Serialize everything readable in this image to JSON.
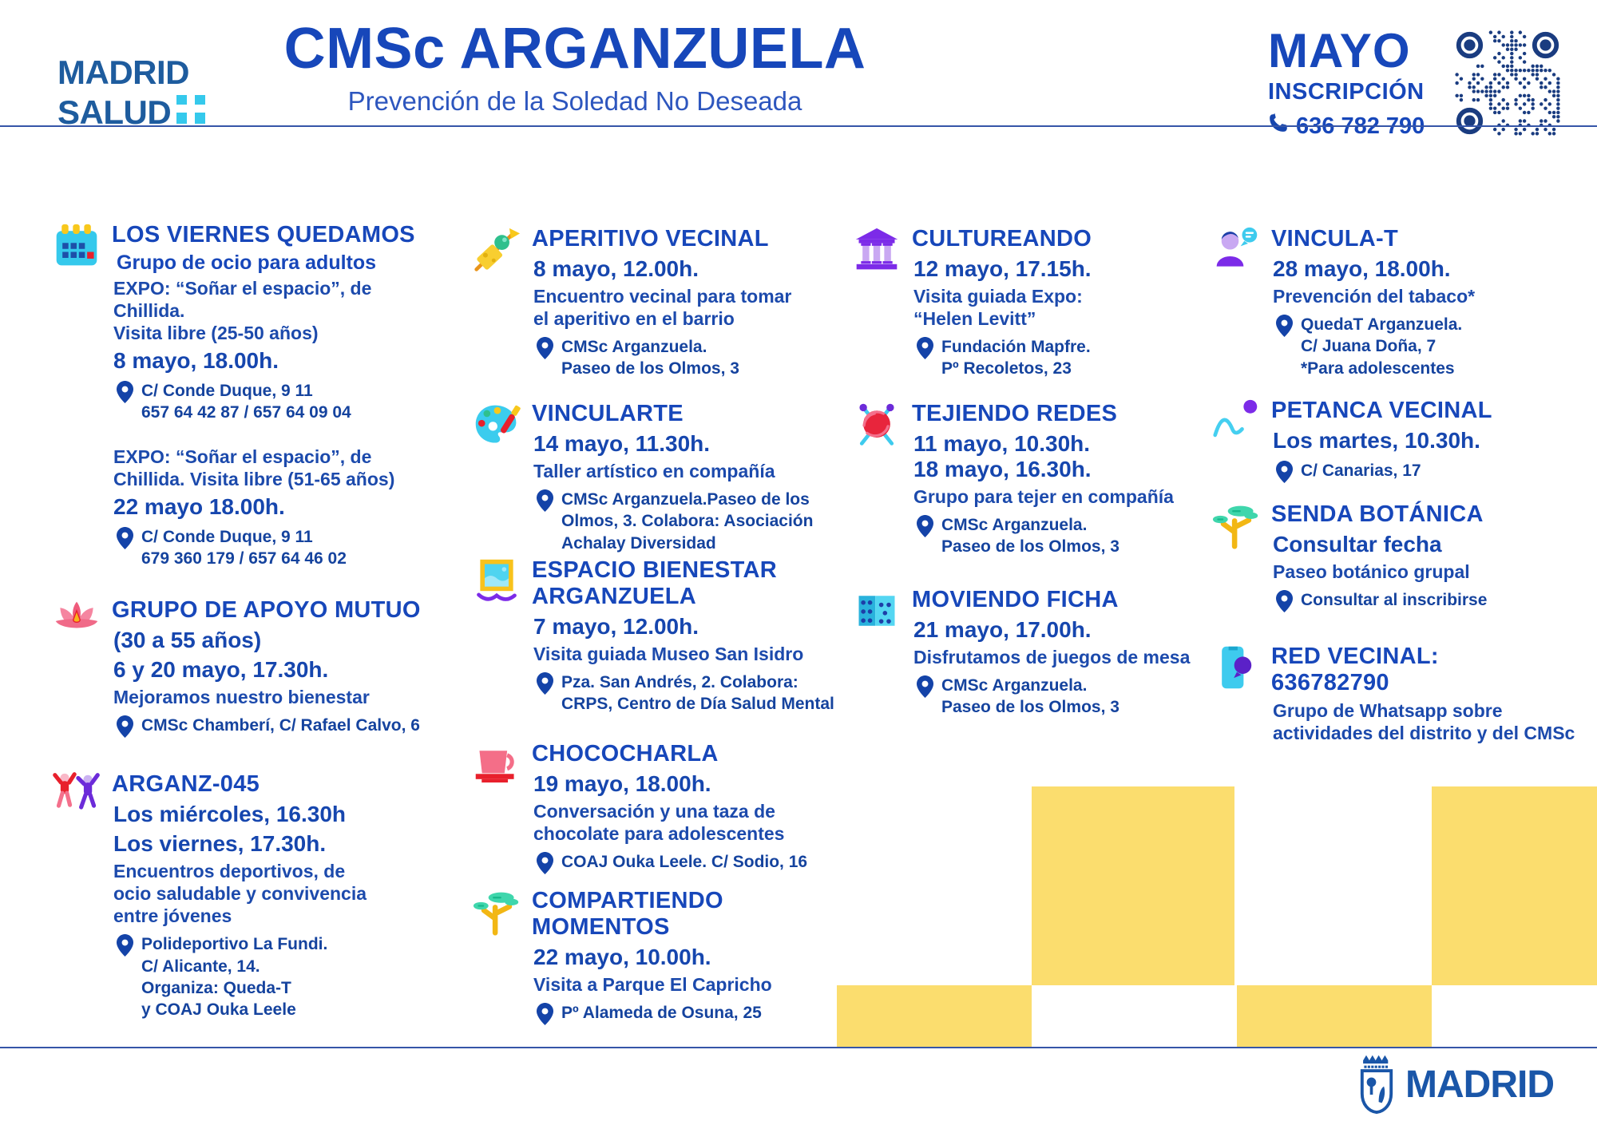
{
  "header": {
    "brand_line1": "MADRID",
    "brand_line2": "SALUD",
    "title": "CMSc ARGANZUELA",
    "subtitle": "Prevención de la Soledad No Deseada",
    "month": "MAYO",
    "inscription_label": "INSCRIPCIÓN",
    "phone": "636 782 790"
  },
  "columns": [
    {
      "events": [
        {
          "icon": "calendar-icon",
          "rows": [
            {
              "type": "title",
              "text": "LOS VIERNES QUEDAMOS"
            },
            {
              "type": "subtitle",
              "text": "Grupo de ocio para adultos"
            },
            {
              "type": "body",
              "text": "EXPO: “Soñar el espacio”, de Chillida.\nVisita libre (25-50 años)"
            },
            {
              "type": "date",
              "text": "8 mayo, 18.00h."
            },
            {
              "type": "location",
              "lines": [
                "C/ Conde Duque, 9 11",
                "657 64 42 87 / 657 64 09 04"
              ]
            },
            {
              "type": "gap"
            },
            {
              "type": "body",
              "text": "EXPO: “Soñar el espacio”, de\nChillida. Visita libre (51-65 años)"
            },
            {
              "type": "date",
              "text": "22 mayo 18.00h."
            },
            {
              "type": "location",
              "lines": [
                "C/ Conde Duque, 9 11",
                "679 360 179 / 657 64 46 02"
              ]
            }
          ]
        },
        {
          "icon": "lotus-icon",
          "rows": [
            {
              "type": "title",
              "text": "GRUPO DE APOYO MUTUO"
            },
            {
              "type": "date",
              "text": "(30 a 55 años)"
            },
            {
              "type": "date",
              "text": "6 y 20 mayo, 17.30h."
            },
            {
              "type": "body",
              "text": "Mejoramos nuestro bienestar"
            },
            {
              "type": "location",
              "lines": [
                "CMSc Chamberí, C/ Rafael Calvo, 6"
              ]
            }
          ]
        },
        {
          "icon": "dancers-icon",
          "rows": [
            {
              "type": "title",
              "text": "ARGANZ-045"
            },
            {
              "type": "date",
              "text": "Los miércoles, 16.30h"
            },
            {
              "type": "date",
              "text": "Los viernes, 17.30h."
            },
            {
              "type": "body",
              "text": "Encuentros deportivos, de\nocio saludable y convivencia\nentre jóvenes"
            },
            {
              "type": "location",
              "lines": [
                "Polideportivo La Fundi.",
                "C/ Alicante, 14.",
                "Organiza: Queda-T",
                "y COAJ Ouka Leele"
              ]
            }
          ]
        }
      ]
    },
    {
      "events": [
        {
          "icon": "skewer-icon",
          "rows": [
            {
              "type": "title",
              "text": "APERITIVO VECINAL"
            },
            {
              "type": "date",
              "text": "8 mayo, 12.00h."
            },
            {
              "type": "body",
              "text": "Encuentro vecinal para tomar\nel aperitivo en el barrio"
            },
            {
              "type": "location",
              "lines": [
                "CMSc Arganzuela.",
                "Paseo de los Olmos, 3"
              ]
            }
          ]
        },
        {
          "icon": "palette-icon",
          "rows": [
            {
              "type": "title",
              "text": "VINCULARTE"
            },
            {
              "type": "date",
              "text": "14 mayo, 11.30h."
            },
            {
              "type": "body",
              "text": "Taller artístico en compañía"
            },
            {
              "type": "location",
              "lines": [
                "CMSc Arganzuela.Paseo de los",
                "Olmos, 3. Colabora: Asociación",
                "Achalay Diversidad"
              ]
            }
          ]
        },
        {
          "icon": "framed-picture-icon",
          "rows": [
            {
              "type": "title",
              "text": "ESPACIO BIENESTAR\nARGANZUELA"
            },
            {
              "type": "date",
              "text": "7 mayo, 12.00h."
            },
            {
              "type": "body",
              "text": "Visita guiada Museo San Isidro"
            },
            {
              "type": "location",
              "lines": [
                "Pza. San Andrés, 2. Colabora:",
                "CRPS, Centro de Día Salud Mental"
              ]
            }
          ]
        },
        {
          "icon": "cup-icon",
          "rows": [
            {
              "type": "title",
              "text": "CHOCOCHARLA"
            },
            {
              "type": "date",
              "text": "19 mayo, 18.00h."
            },
            {
              "type": "body",
              "text": "Conversación y una taza de\nchocolate para adolescentes"
            },
            {
              "type": "location",
              "lines": [
                "COAJ Ouka Leele. C/ Sodio, 16"
              ]
            }
          ]
        },
        {
          "icon": "tree-icon",
          "rows": [
            {
              "type": "title",
              "text": "COMPARTIENDO\nMOMENTOS"
            },
            {
              "type": "date",
              "text": "22 mayo, 10.00h."
            },
            {
              "type": "body",
              "text": "Visita a Parque El Capricho"
            },
            {
              "type": "location",
              "lines": [
                "Pº Alameda de Osuna, 25"
              ]
            }
          ]
        }
      ]
    },
    {
      "events": [
        {
          "icon": "museum-icon",
          "rows": [
            {
              "type": "title",
              "text": "CULTUREANDO"
            },
            {
              "type": "date",
              "text": "12 mayo, 17.15h."
            },
            {
              "type": "body",
              "text": "Visita guiada Expo:\n“Helen Levitt”"
            },
            {
              "type": "location",
              "lines": [
                "Fundación Mapfre.",
                "Pº Recoletos, 23"
              ]
            }
          ]
        },
        {
          "icon": "yarn-icon",
          "rows": [
            {
              "type": "title",
              "text": "TEJIENDO REDES"
            },
            {
              "type": "date",
              "text": "11 mayo, 10.30h.\n18 mayo, 16.30h."
            },
            {
              "type": "body",
              "text": "Grupo para tejer en compañía"
            },
            {
              "type": "location",
              "lines": [
                "CMSc Arganzuela.",
                "Paseo de los Olmos, 3"
              ]
            }
          ]
        },
        {
          "icon": "dice-icon",
          "rows": [
            {
              "type": "title",
              "text": "MOVIENDO FICHA"
            },
            {
              "type": "date",
              "text": "21 mayo, 17.00h."
            },
            {
              "type": "body",
              "text": "Disfrutamos de juegos de mesa"
            },
            {
              "type": "location",
              "lines": [
                "CMSc Arganzuela.",
                "Paseo de los Olmos, 3"
              ]
            }
          ]
        }
      ]
    },
    {
      "events": [
        {
          "icon": "person-chat-icon",
          "rows": [
            {
              "type": "title",
              "text": "VINCULA-T"
            },
            {
              "type": "date",
              "text": "28 mayo, 18.00h."
            },
            {
              "type": "body",
              "text": "Prevención del tabaco*"
            },
            {
              "type": "location",
              "lines": [
                "QuedaT Arganzuela.",
                "C/ Juana Doña, 7",
                "*Para adolescentes"
              ]
            }
          ]
        },
        {
          "icon": "petanca-icon",
          "rows": [
            {
              "type": "title",
              "text": "PETANCA VECINAL"
            },
            {
              "type": "date",
              "text": "Los martes, 10.30h."
            },
            {
              "type": "location",
              "lines": [
                "C/ Canarias, 17"
              ]
            }
          ]
        },
        {
          "icon": "tree-icon",
          "rows": [
            {
              "type": "title",
              "text": "SENDA BOTÁNICA"
            },
            {
              "type": "date",
              "text": "Consultar fecha"
            },
            {
              "type": "body",
              "text": "Paseo botánico grupal"
            },
            {
              "type": "location",
              "lines": [
                "Consultar al inscribirse"
              ]
            }
          ]
        },
        {
          "icon": "phone-chat-icon",
          "rows": [
            {
              "type": "title",
              "text": "RED VECINAL:\n636782790"
            },
            {
              "type": "body",
              "text": "Grupo de Whatsapp sobre\nactividades del distrito y del CMSc"
            }
          ]
        }
      ]
    }
  ],
  "footer": {
    "city_logo_text": "MADRID"
  },
  "colors": {
    "title_blue": "#1747BA",
    "date_blue": "#1646AE",
    "body_blue": "#1C4AAC",
    "location_blue": "#15439E",
    "subtitle_blue": "#2D56BE",
    "brand_blue": "#1E5C9E",
    "cyan": "#35C9EC",
    "yellow": "#FBDD6E",
    "qr_navy": "#1A3C80",
    "footer_blue": "#1A56A8",
    "divider_blue": "#3555A8"
  }
}
